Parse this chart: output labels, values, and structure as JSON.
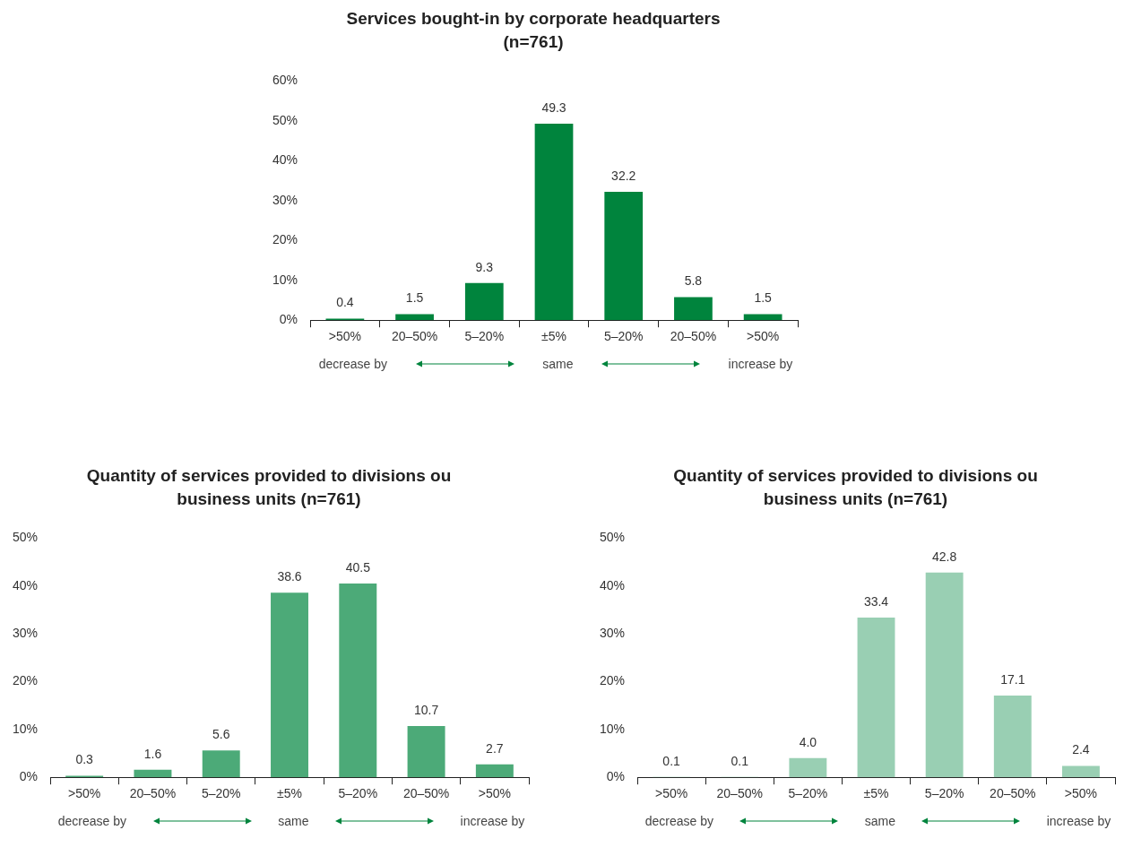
{
  "chart_data": [
    {
      "type": "bar",
      "title": "Services bought-in by corporate headquarters (n=761)",
      "categories": [
        ">50%",
        "20–50%",
        "5–20%",
        "±5%",
        "5–20%",
        "20–50%",
        ">50%"
      ],
      "values": [
        0.4,
        1.5,
        9.3,
        49.3,
        32.2,
        5.8,
        1.5
      ],
      "value_labels": [
        "0.4",
        "1.5",
        "9.3",
        "49.3",
        "32.2",
        "5.8",
        "1.5"
      ],
      "color": "#00843d",
      "ylim": [
        0,
        60
      ],
      "yticks": [
        {
          "value": 0,
          "label": "0%"
        },
        {
          "value": 10,
          "label": "10%"
        },
        {
          "value": 20,
          "label": "20%"
        },
        {
          "value": 30,
          "label": "30%"
        },
        {
          "value": 40,
          "label": "40%"
        },
        {
          "value": 50,
          "label": "50%"
        },
        {
          "value": 60,
          "label": "60%"
        }
      ],
      "grid": false,
      "legend": false,
      "annotations": [
        "decrease by",
        "same",
        "increase by"
      ]
    },
    {
      "type": "bar",
      "title": "Quantity of services provided to divisions ou business units (n=761)",
      "categories": [
        ">50%",
        "20–50%",
        "5–20%",
        "±5%",
        "5–20%",
        "20–50%",
        ">50%"
      ],
      "values": [
        0.3,
        1.6,
        5.6,
        38.6,
        40.5,
        10.7,
        2.7
      ],
      "value_labels": [
        "0.3",
        "1.6",
        "5.6",
        "38.6",
        "40.5",
        "10.7",
        "2.7"
      ],
      "color": "#4caa78",
      "ylim": [
        0,
        50
      ],
      "yticks": [
        {
          "value": 0,
          "label": "0%"
        },
        {
          "value": 10,
          "label": "10%"
        },
        {
          "value": 20,
          "label": "20%"
        },
        {
          "value": 30,
          "label": "30%"
        },
        {
          "value": 40,
          "label": "40%"
        },
        {
          "value": 50,
          "label": "50%"
        }
      ],
      "grid": false,
      "legend": false,
      "annotations": [
        "decrease by",
        "same",
        "increase by"
      ]
    },
    {
      "type": "bar",
      "title": "Quantity of services provided to divisions ou business units (n=761)",
      "categories": [
        ">50%",
        "20–50%",
        "5–20%",
        "±5%",
        "5–20%",
        "20–50%",
        ">50%"
      ],
      "values": [
        0.1,
        0.1,
        4.0,
        33.4,
        42.8,
        17.1,
        2.4
      ],
      "value_labels": [
        "0.1",
        "0.1",
        "4.0",
        "33.4",
        "42.8",
        "17.1",
        "2.4"
      ],
      "color": "#99cfb3",
      "ylim": [
        0,
        50
      ],
      "yticks": [
        {
          "value": 0,
          "label": "0%"
        },
        {
          "value": 10,
          "label": "10%"
        },
        {
          "value": 20,
          "label": "20%"
        },
        {
          "value": 30,
          "label": "30%"
        },
        {
          "value": 40,
          "label": "40%"
        },
        {
          "value": 50,
          "label": "50%"
        }
      ],
      "grid": false,
      "legend": false,
      "annotations": [
        "decrease by",
        "same",
        "increase by"
      ]
    }
  ]
}
